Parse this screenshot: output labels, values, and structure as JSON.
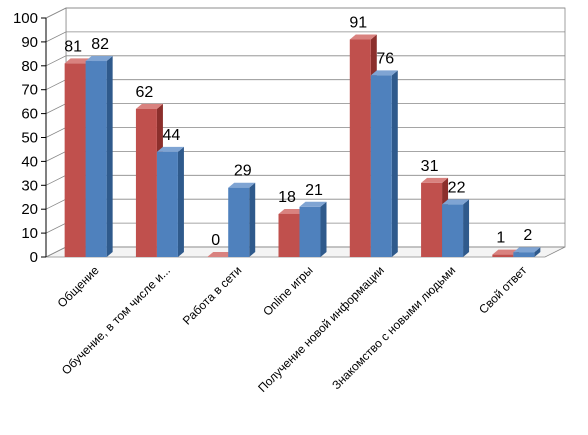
{
  "chart_data": {
    "type": "bar",
    "categories": [
      "Общение",
      "Обучение, в том числе и...",
      "Работа в сети",
      "Online игры",
      "Получение новой информации",
      "Знакомство с новыми людьми",
      "Свой ответ"
    ],
    "series": [
      {
        "values": [
          81,
          62,
          0,
          18,
          91,
          31,
          1
        ]
      },
      {
        "values": [
          82,
          44,
          29,
          21,
          76,
          22,
          2
        ]
      }
    ],
    "yticks": [
      "0",
      "10",
      "20",
      "30",
      "40",
      "50",
      "60",
      "70",
      "80",
      "90",
      "100"
    ],
    "ylim": [
      0,
      100
    ],
    "grid": true,
    "bar3d": true,
    "colors": {
      "series1_front": "#c0504d",
      "series1_side": "#8c2f2c",
      "series1_top": "#d9827f",
      "series2_front": "#4f81bd",
      "series2_side": "#2f5a8c",
      "series2_top": "#7fa4d3",
      "grid": "#888888",
      "wall": "#ffffff"
    }
  }
}
